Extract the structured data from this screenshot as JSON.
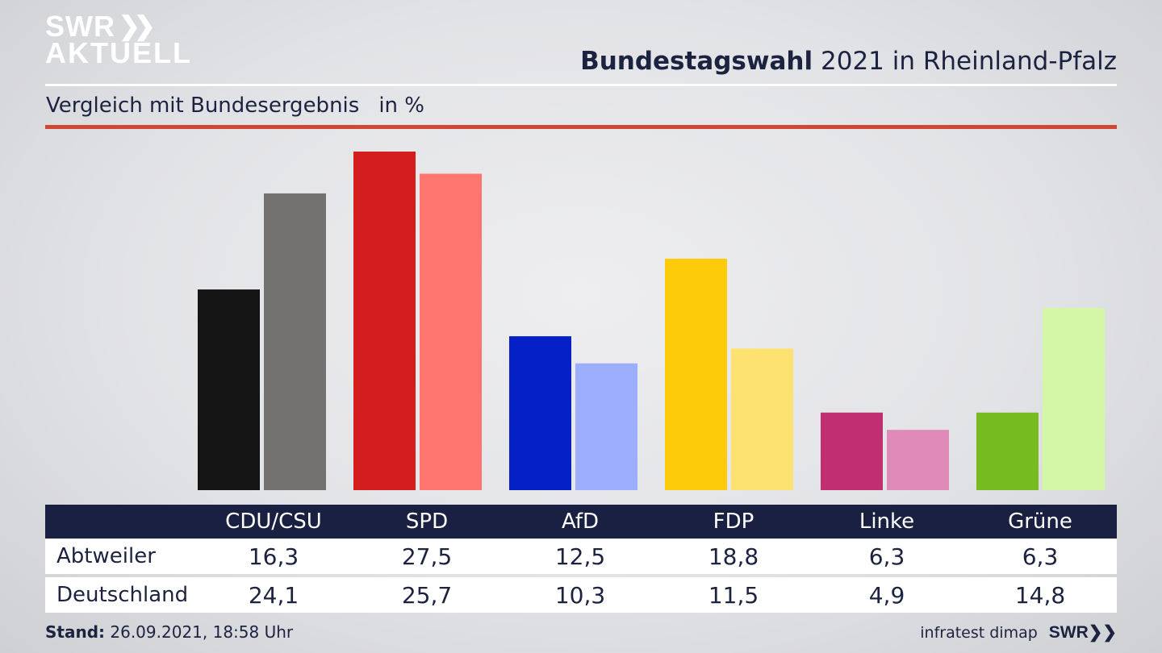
{
  "brand": {
    "logo_line1": "SWR",
    "logo_line2": "AKTUELL",
    "footer_logo": "SWR"
  },
  "header": {
    "title_bold": "Bundestagswahl",
    "title_rest": "2021 in Rheinland-Pfalz"
  },
  "subtitle": {
    "text": "Vergleich mit Bundesergebnis",
    "unit": "in %"
  },
  "chart_data": {
    "type": "bar",
    "categories": [
      "CDU/CSU",
      "SPD",
      "AfD",
      "FDP",
      "Linke",
      "Grüne"
    ],
    "series": [
      {
        "name": "Abtweiler",
        "values": [
          16.3,
          27.5,
          12.5,
          18.8,
          6.3,
          6.3
        ],
        "colors": [
          "#141414",
          "#d41d1f",
          "#0420c6",
          "#fecb0b",
          "#bf2f72",
          "#76bc21"
        ]
      },
      {
        "name": "Deutschland",
        "values": [
          24.1,
          25.7,
          10.3,
          11.5,
          4.9,
          14.8
        ],
        "colors": [
          "#737271",
          "#ff7570",
          "#9eaeff",
          "#fde271",
          "#df8ab8",
          "#d4f6a7"
        ]
      }
    ],
    "ylim": [
      0,
      27.5
    ],
    "grid": false,
    "legend": "table-below"
  },
  "footer": {
    "stand_label": "Stand:",
    "stand_value": "26.09.2021, 18:58 Uhr",
    "source": "infratest dimap"
  }
}
